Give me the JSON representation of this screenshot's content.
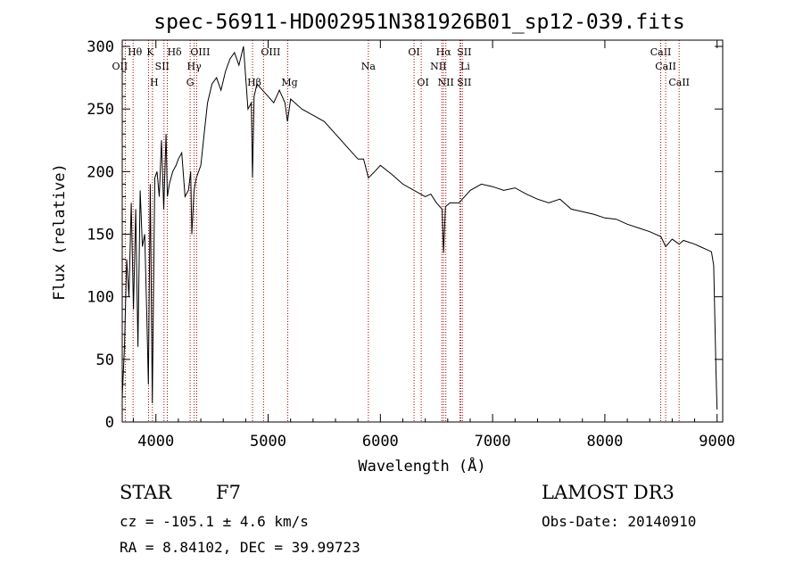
{
  "chart_data": {
    "type": "line",
    "title": "spec-56911-HD002951N381926B01_sp12-039.fits",
    "xlabel": "Wavelength (Å)",
    "ylabel": "Flux (relative)",
    "xlim": [
      3700,
      9050
    ],
    "ylim": [
      0,
      305
    ],
    "xticks": [
      4000,
      5000,
      6000,
      7000,
      8000,
      9000
    ],
    "yticks": [
      0,
      50,
      100,
      150,
      200,
      250,
      300
    ],
    "grid": false,
    "series": [
      {
        "x": [
          3700,
          3720,
          3740,
          3760,
          3780,
          3800,
          3820,
          3840,
          3860,
          3880,
          3900,
          3920,
          3933,
          3950,
          3968,
          3990,
          4010,
          4030,
          4050,
          4070,
          4090,
          4102,
          4120,
          4150,
          4180,
          4200,
          4230,
          4260,
          4290,
          4310,
          4320,
          4340,
          4360,
          4400,
          4430,
          4460,
          4500,
          4540,
          4580,
          4620,
          4660,
          4700,
          4740,
          4780,
          4820,
          4850,
          4861,
          4875,
          4900,
          4950,
          5000,
          5050,
          5100,
          5150,
          5172,
          5200,
          5300,
          5400,
          5500,
          5600,
          5700,
          5800,
          5850,
          5893,
          5950,
          6000,
          6100,
          6200,
          6300,
          6400,
          6450,
          6500,
          6550,
          6563,
          6580,
          6620,
          6700,
          6800,
          6900,
          7000,
          7100,
          7200,
          7300,
          7400,
          7500,
          7600,
          7700,
          7800,
          7900,
          8000,
          8100,
          8200,
          8300,
          8400,
          8500,
          8542,
          8600,
          8662,
          8700,
          8800,
          8850,
          8900,
          8950,
          8970,
          8990,
          9000
        ],
        "y": [
          20,
          60,
          130,
          100,
          175,
          90,
          170,
          60,
          185,
          140,
          150,
          80,
          30,
          190,
          15,
          195,
          200,
          180,
          225,
          170,
          230,
          180,
          190,
          200,
          205,
          210,
          215,
          180,
          185,
          200,
          150,
          185,
          195,
          205,
          230,
          255,
          270,
          275,
          265,
          280,
          290,
          295,
          285,
          300,
          250,
          255,
          195,
          260,
          270,
          265,
          260,
          255,
          265,
          255,
          240,
          258,
          250,
          245,
          240,
          230,
          220,
          210,
          210,
          195,
          200,
          205,
          198,
          190,
          185,
          180,
          182,
          175,
          170,
          135,
          172,
          175,
          175,
          185,
          190,
          188,
          185,
          187,
          182,
          178,
          175,
          178,
          170,
          168,
          166,
          163,
          162,
          158,
          155,
          152,
          148,
          140,
          146,
          142,
          145,
          142,
          140,
          138,
          136,
          125,
          40,
          10
        ]
      }
    ],
    "annotations": [
      "OII",
      "Hθ",
      "K",
      "H",
      "SII",
      "Hδ",
      "Hγ",
      "G",
      "OIII",
      "OIII",
      "Hβ",
      "Mg",
      "Na",
      "OI",
      "OI",
      "Hα",
      "NII",
      "NII",
      "SII",
      "SII",
      "Li",
      "CaII",
      "CaII",
      "CaII"
    ]
  },
  "info": {
    "object_class": "STAR",
    "subclass": "F7",
    "survey": "LAMOST DR3",
    "cz": "cz = -105.1 ± 4.6 km/s",
    "obs_date": "Obs-Date: 20140910",
    "coords": "RA =   8.84102, DEC =  39.99723"
  }
}
